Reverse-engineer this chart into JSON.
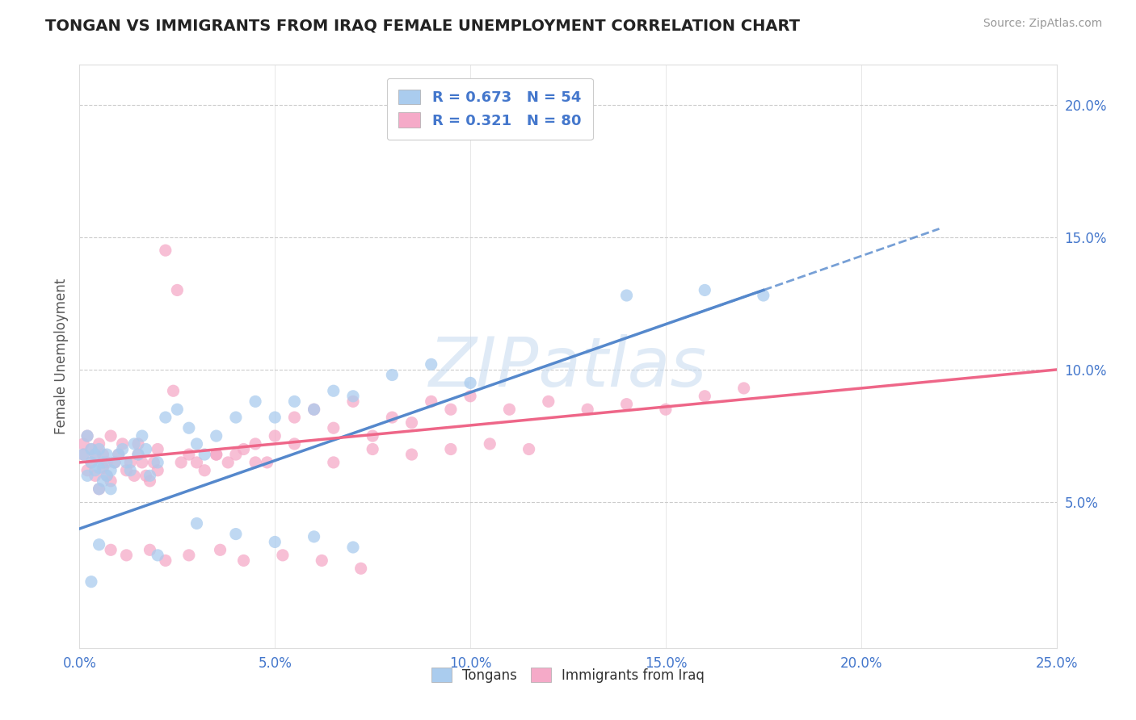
{
  "title": "TONGAN VS IMMIGRANTS FROM IRAQ FEMALE UNEMPLOYMENT CORRELATION CHART",
  "source": "Source: ZipAtlas.com",
  "ylabel": "Female Unemployment",
  "xlim": [
    0,
    0.25
  ],
  "ylim": [
    -0.005,
    0.215
  ],
  "xticks": [
    0.0,
    0.05,
    0.1,
    0.15,
    0.2,
    0.25
  ],
  "yticks": [
    0.05,
    0.1,
    0.15,
    0.2
  ],
  "xticklabels": [
    "0.0%",
    "5.0%",
    "10.0%",
    "15.0%",
    "20.0%",
    "25.0%"
  ],
  "yticklabels": [
    "5.0%",
    "10.0%",
    "15.0%",
    "20.0%"
  ],
  "legend_labels": [
    "Tongans",
    "Immigrants from Iraq"
  ],
  "series1_color": "#aaccee",
  "series2_color": "#f5aac8",
  "line1_color": "#5588cc",
  "line2_color": "#ee6688",
  "R1": 0.673,
  "N1": 54,
  "R2": 0.321,
  "N2": 80,
  "watermark": "ZIPatlas",
  "background_color": "#ffffff",
  "title_fontsize": 14,
  "tick_color": "#4477cc",
  "grid_color": "#cccccc",
  "line1_x0": 0.0,
  "line1_y0": 0.04,
  "line1_x1": 0.175,
  "line1_y1": 0.13,
  "line1_dash_x0": 0.155,
  "line1_dash_x1": 0.22,
  "line2_x0": 0.0,
  "line2_y0": 0.065,
  "line2_x1": 0.25,
  "line2_y1": 0.1,
  "series1_x": [
    0.001,
    0.002,
    0.002,
    0.003,
    0.003,
    0.004,
    0.004,
    0.005,
    0.005,
    0.005,
    0.006,
    0.006,
    0.007,
    0.007,
    0.008,
    0.008,
    0.009,
    0.01,
    0.011,
    0.012,
    0.013,
    0.014,
    0.015,
    0.016,
    0.017,
    0.018,
    0.02,
    0.022,
    0.025,
    0.028,
    0.03,
    0.032,
    0.035,
    0.04,
    0.045,
    0.05,
    0.055,
    0.06,
    0.065,
    0.07,
    0.08,
    0.09,
    0.1,
    0.03,
    0.04,
    0.05,
    0.06,
    0.07,
    0.14,
    0.16,
    0.175,
    0.02,
    0.005,
    0.003
  ],
  "series1_y": [
    0.068,
    0.06,
    0.075,
    0.065,
    0.07,
    0.062,
    0.068,
    0.055,
    0.063,
    0.07,
    0.058,
    0.065,
    0.06,
    0.068,
    0.055,
    0.062,
    0.065,
    0.068,
    0.07,
    0.065,
    0.062,
    0.072,
    0.068,
    0.075,
    0.07,
    0.06,
    0.065,
    0.082,
    0.085,
    0.078,
    0.072,
    0.068,
    0.075,
    0.082,
    0.088,
    0.082,
    0.088,
    0.085,
    0.092,
    0.09,
    0.098,
    0.102,
    0.095,
    0.042,
    0.038,
    0.035,
    0.037,
    0.033,
    0.128,
    0.13,
    0.128,
    0.03,
    0.034,
    0.02
  ],
  "series2_x": [
    0.001,
    0.001,
    0.002,
    0.002,
    0.003,
    0.003,
    0.004,
    0.004,
    0.005,
    0.005,
    0.006,
    0.006,
    0.007,
    0.007,
    0.008,
    0.008,
    0.009,
    0.01,
    0.011,
    0.012,
    0.013,
    0.014,
    0.015,
    0.015,
    0.016,
    0.017,
    0.018,
    0.019,
    0.02,
    0.02,
    0.022,
    0.024,
    0.026,
    0.028,
    0.03,
    0.032,
    0.035,
    0.038,
    0.04,
    0.042,
    0.045,
    0.048,
    0.05,
    0.055,
    0.06,
    0.065,
    0.07,
    0.075,
    0.08,
    0.085,
    0.09,
    0.095,
    0.1,
    0.11,
    0.12,
    0.13,
    0.14,
    0.15,
    0.16,
    0.17,
    0.025,
    0.035,
    0.045,
    0.055,
    0.065,
    0.075,
    0.085,
    0.095,
    0.105,
    0.115,
    0.008,
    0.012,
    0.018,
    0.022,
    0.028,
    0.036,
    0.042,
    0.052,
    0.062,
    0.072
  ],
  "series2_y": [
    0.068,
    0.072,
    0.062,
    0.075,
    0.065,
    0.07,
    0.06,
    0.068,
    0.055,
    0.072,
    0.063,
    0.068,
    0.06,
    0.065,
    0.058,
    0.075,
    0.065,
    0.068,
    0.072,
    0.062,
    0.065,
    0.06,
    0.068,
    0.072,
    0.065,
    0.06,
    0.058,
    0.065,
    0.07,
    0.062,
    0.145,
    0.092,
    0.065,
    0.068,
    0.065,
    0.062,
    0.068,
    0.065,
    0.068,
    0.07,
    0.072,
    0.065,
    0.075,
    0.082,
    0.085,
    0.078,
    0.088,
    0.075,
    0.082,
    0.08,
    0.088,
    0.085,
    0.09,
    0.085,
    0.088,
    0.085,
    0.087,
    0.085,
    0.09,
    0.093,
    0.13,
    0.068,
    0.065,
    0.072,
    0.065,
    0.07,
    0.068,
    0.07,
    0.072,
    0.07,
    0.032,
    0.03,
    0.032,
    0.028,
    0.03,
    0.032,
    0.028,
    0.03,
    0.028,
    0.025
  ]
}
